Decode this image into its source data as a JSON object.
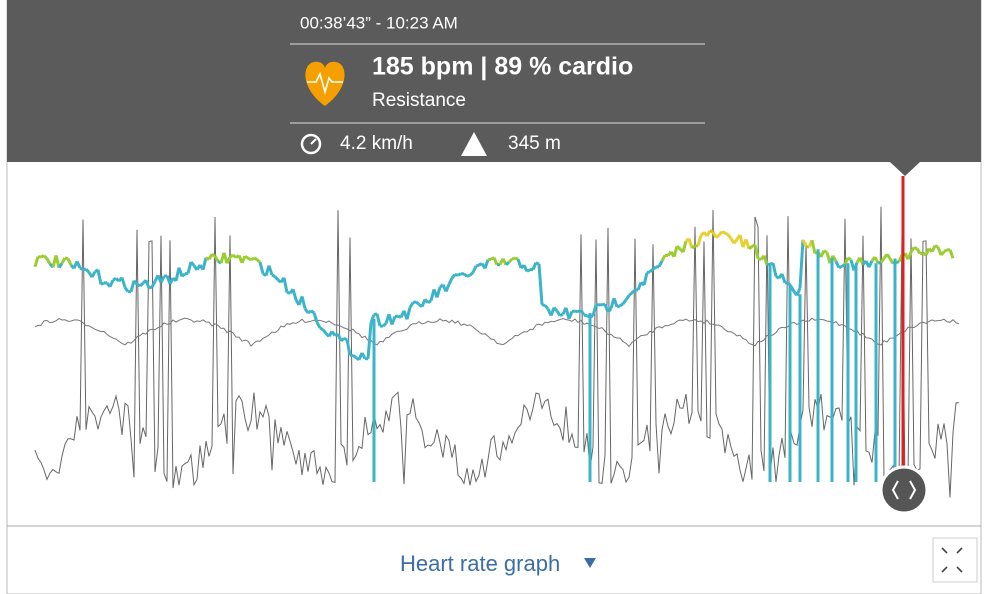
{
  "header": {
    "time": "00:38’43” - 10:23 AM",
    "heart_rate": "185 bpm | 89 % cardio",
    "zone": "Resistance",
    "speed": "4.2 km/h",
    "altitude": "345 m"
  },
  "footer": {
    "title": "Heart rate graph"
  }
}
